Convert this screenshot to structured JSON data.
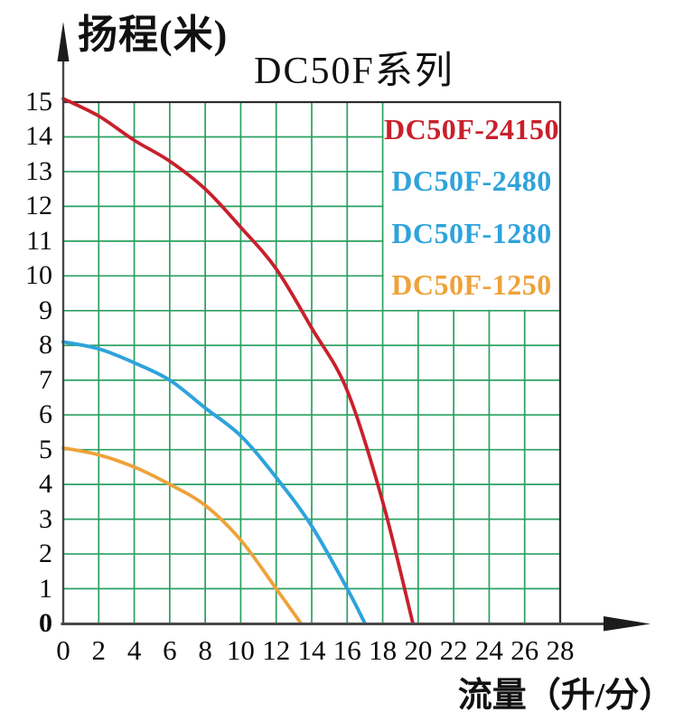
{
  "title": "DC50F系列",
  "y_axis_label": "扬程(米)",
  "x_axis_label": "流量（升/分）",
  "colors": {
    "red": "#c8202c",
    "blue": "#2fa3db",
    "orange": "#eea23a",
    "grid": "#2aa061",
    "axis": "#47474a",
    "border": "#2e2e30",
    "legend_bg": "#ffffff",
    "text": "#111111"
  },
  "legend": [
    {
      "label": "DC50F-24150",
      "color": "#c8202c"
    },
    {
      "label": "DC50F-2480",
      "color": "#2fa3db"
    },
    {
      "label": "DC50F-1280",
      "color": "#2fa3db"
    },
    {
      "label": "DC50F-1250",
      "color": "#eea23a"
    }
  ],
  "chart_data": {
    "type": "line",
    "title": "DC50F系列",
    "xlabel": "流量（升/分）",
    "ylabel": "扬程(米)",
    "xlim": [
      0,
      28
    ],
    "ylim": [
      0,
      15
    ],
    "x_ticks": [
      0,
      2,
      4,
      6,
      8,
      10,
      12,
      14,
      16,
      18,
      20,
      22,
      24,
      26,
      28
    ],
    "y_ticks": [
      0,
      1,
      2,
      3,
      4,
      5,
      6,
      7,
      8,
      9,
      10,
      11,
      12,
      13,
      14,
      15
    ],
    "grid": true,
    "grid_x_step": 2,
    "grid_y_step": 1,
    "legend_position": "upper-right",
    "series": [
      {
        "name": "DC50F-24150",
        "color": "#c8202c",
        "points": [
          [
            0,
            15.1
          ],
          [
            2,
            14.6
          ],
          [
            4,
            13.9
          ],
          [
            6,
            13.3
          ],
          [
            8,
            12.5
          ],
          [
            10,
            11.4
          ],
          [
            12,
            10.2
          ],
          [
            14,
            8.5
          ],
          [
            16,
            6.7
          ],
          [
            18,
            3.5
          ],
          [
            19.7,
            0
          ]
        ]
      },
      {
        "name": "DC50F-2480",
        "color": "#2fa3db",
        "points": [
          [
            0,
            8.1
          ],
          [
            2,
            7.9
          ],
          [
            4,
            7.5
          ],
          [
            6,
            7.0
          ],
          [
            8,
            6.2
          ],
          [
            10,
            5.4
          ],
          [
            12,
            4.2
          ],
          [
            14,
            2.8
          ],
          [
            16,
            1.0
          ],
          [
            17,
            0
          ]
        ]
      },
      {
        "name": "DC50F-1280",
        "color": "#2fa3db",
        "note": "curve overlaps DC50F-2480",
        "points": [
          [
            0,
            8.1
          ],
          [
            2,
            7.9
          ],
          [
            4,
            7.5
          ],
          [
            6,
            7.0
          ],
          [
            8,
            6.2
          ],
          [
            10,
            5.4
          ],
          [
            12,
            4.2
          ],
          [
            14,
            2.8
          ],
          [
            16,
            1.0
          ],
          [
            17,
            0
          ]
        ]
      },
      {
        "name": "DC50F-1250",
        "color": "#eea23a",
        "points": [
          [
            0,
            5.05
          ],
          [
            2,
            4.85
          ],
          [
            4,
            4.5
          ],
          [
            6,
            4.0
          ],
          [
            8,
            3.4
          ],
          [
            10,
            2.4
          ],
          [
            12,
            1.0
          ],
          [
            13.4,
            0
          ]
        ]
      }
    ]
  }
}
